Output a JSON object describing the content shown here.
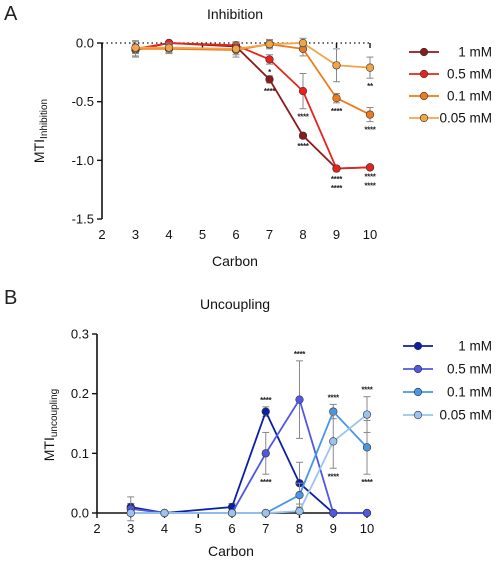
{
  "chart_data": [
    {
      "type": "line",
      "panel": "A",
      "title": "Inhibition",
      "xlabel": "Carbon",
      "ylabel": "MTI",
      "ylabel_subscript": "Inhibition",
      "xlim": [
        2,
        10
      ],
      "ylim": [
        -1.5,
        0.0
      ],
      "xticks": [
        2,
        3,
        4,
        5,
        6,
        7,
        8,
        9,
        10
      ],
      "yticks": [
        0.0,
        -0.5,
        -1.0,
        -1.5
      ],
      "ytick_labels": [
        "0.0",
        "-0.5",
        "-1.0",
        "-1.5"
      ],
      "reference_line": 0.0,
      "legend_position": "right",
      "series": [
        {
          "name": "1 mM",
          "color": "#8b1a1a",
          "x": [
            3,
            4,
            6,
            7,
            8,
            9,
            10
          ],
          "y": [
            -0.06,
            0.0,
            -0.03,
            -0.31,
            -0.79,
            -1.07,
            -1.06
          ],
          "err": [
            0.05,
            0.0,
            0.03,
            0.03,
            0.02,
            0.02,
            0.01
          ],
          "significance": [
            {
              "x": 7,
              "label": "****",
              "side": "below"
            },
            {
              "x": 8,
              "label": "****",
              "side": "below"
            },
            {
              "x": 9,
              "label": "****",
              "side": "below",
              "row": 1
            },
            {
              "x": 10,
              "label": "****",
              "side": "below",
              "row": 1
            }
          ]
        },
        {
          "name": "0.5 mM",
          "color": "#e8231e",
          "x": [
            3,
            4,
            6,
            7,
            8,
            9,
            10
          ],
          "y": [
            -0.05,
            0.0,
            -0.02,
            -0.14,
            -0.41,
            -1.07,
            -1.06
          ],
          "err": [
            0.03,
            0.0,
            0.03,
            0.04,
            0.15,
            0.02,
            0.01
          ],
          "significance": [
            {
              "x": 7,
              "label": "*",
              "side": "below"
            },
            {
              "x": 8,
              "label": "****",
              "side": "below"
            },
            {
              "x": 9,
              "label": "****",
              "side": "below",
              "row": 0
            },
            {
              "x": 10,
              "label": "****",
              "side": "below",
              "row": 0
            }
          ]
        },
        {
          "name": "0.1 mM",
          "color": "#ef7a1a",
          "x": [
            3,
            4,
            6,
            7,
            8,
            9,
            10
          ],
          "y": [
            -0.05,
            -0.05,
            -0.06,
            -0.01,
            -0.05,
            -0.47,
            -0.61
          ],
          "err": [
            0.07,
            0.04,
            0.06,
            0.04,
            0.06,
            0.04,
            0.06
          ],
          "significance": [
            {
              "x": 9,
              "label": "****",
              "side": "below"
            },
            {
              "x": 10,
              "label": "****",
              "side": "below"
            }
          ]
        },
        {
          "name": "0.05 mM",
          "color": "#f2a447",
          "x": [
            3,
            4,
            6,
            7,
            8,
            9,
            10
          ],
          "y": [
            -0.04,
            -0.04,
            -0.05,
            -0.01,
            0.0,
            -0.19,
            -0.21
          ],
          "err": [
            0.05,
            0.04,
            0.05,
            0.03,
            0.04,
            0.14,
            0.09
          ],
          "significance": [
            {
              "x": 10,
              "label": "**",
              "side": "below"
            }
          ]
        }
      ]
    },
    {
      "type": "line",
      "panel": "B",
      "title": "Uncoupling",
      "xlabel": "Carbon",
      "ylabel": "MTI",
      "ylabel_subscript": "uncoupling",
      "xlim": [
        2,
        10
      ],
      "ylim": [
        0.0,
        0.3
      ],
      "xticks": [
        2,
        3,
        4,
        5,
        6,
        7,
        8,
        9,
        10
      ],
      "yticks": [
        0.0,
        0.1,
        0.2,
        0.3
      ],
      "ytick_labels": [
        "0.0",
        "0.1",
        "0.2",
        "0.3"
      ],
      "legend_position": "right",
      "series": [
        {
          "name": "1 mM",
          "color": "#0a1fa8",
          "x": [
            3,
            4,
            6,
            7,
            8,
            9,
            10
          ],
          "y": [
            0.01,
            0.0,
            0.01,
            0.17,
            0.05,
            0.0,
            0.0
          ],
          "err": [
            0.006,
            0.0,
            0.006,
            0.008,
            0.035,
            0.0,
            0.0
          ],
          "significance": [
            {
              "x": 7,
              "label": "****",
              "side": "above"
            }
          ]
        },
        {
          "name": "0.5 mM",
          "color": "#5058e2",
          "x": [
            3,
            4,
            6,
            7,
            8,
            9,
            10
          ],
          "y": [
            0.007,
            0.0,
            0.0,
            0.1,
            0.19,
            0.0,
            0.0
          ],
          "err": [
            0.02,
            0.0,
            0.0,
            0.035,
            0.065,
            0.0,
            0.0
          ],
          "significance": [
            {
              "x": 7,
              "label": "****",
              "side": "below"
            },
            {
              "x": 8,
              "label": "****",
              "side": "above"
            }
          ]
        },
        {
          "name": "0.1 mM",
          "color": "#4a96e6",
          "x": [
            3,
            4,
            6,
            7,
            8,
            9,
            10
          ],
          "y": [
            0.0,
            0.0,
            0.0,
            0.0,
            0.03,
            0.17,
            0.11
          ],
          "err": [
            0.0,
            0.0,
            0.0,
            0.0,
            0.02,
            0.012,
            0.045
          ],
          "significance": [
            {
              "x": 9,
              "label": "****",
              "side": "above"
            },
            {
              "x": 10,
              "label": "****",
              "side": "below"
            }
          ]
        },
        {
          "name": "0.05 mM",
          "color": "#9ac4ef",
          "x": [
            3,
            4,
            6,
            7,
            8,
            9,
            10
          ],
          "y": [
            0.0,
            0.0,
            0.0,
            0.0,
            0.003,
            0.12,
            0.165
          ],
          "err": [
            0.0,
            0.0,
            0.0,
            0.0,
            0.003,
            0.045,
            0.03
          ],
          "significance": [
            {
              "x": 9,
              "label": "****",
              "side": "below"
            },
            {
              "x": 10,
              "label": "****",
              "side": "above"
            }
          ]
        }
      ]
    }
  ]
}
